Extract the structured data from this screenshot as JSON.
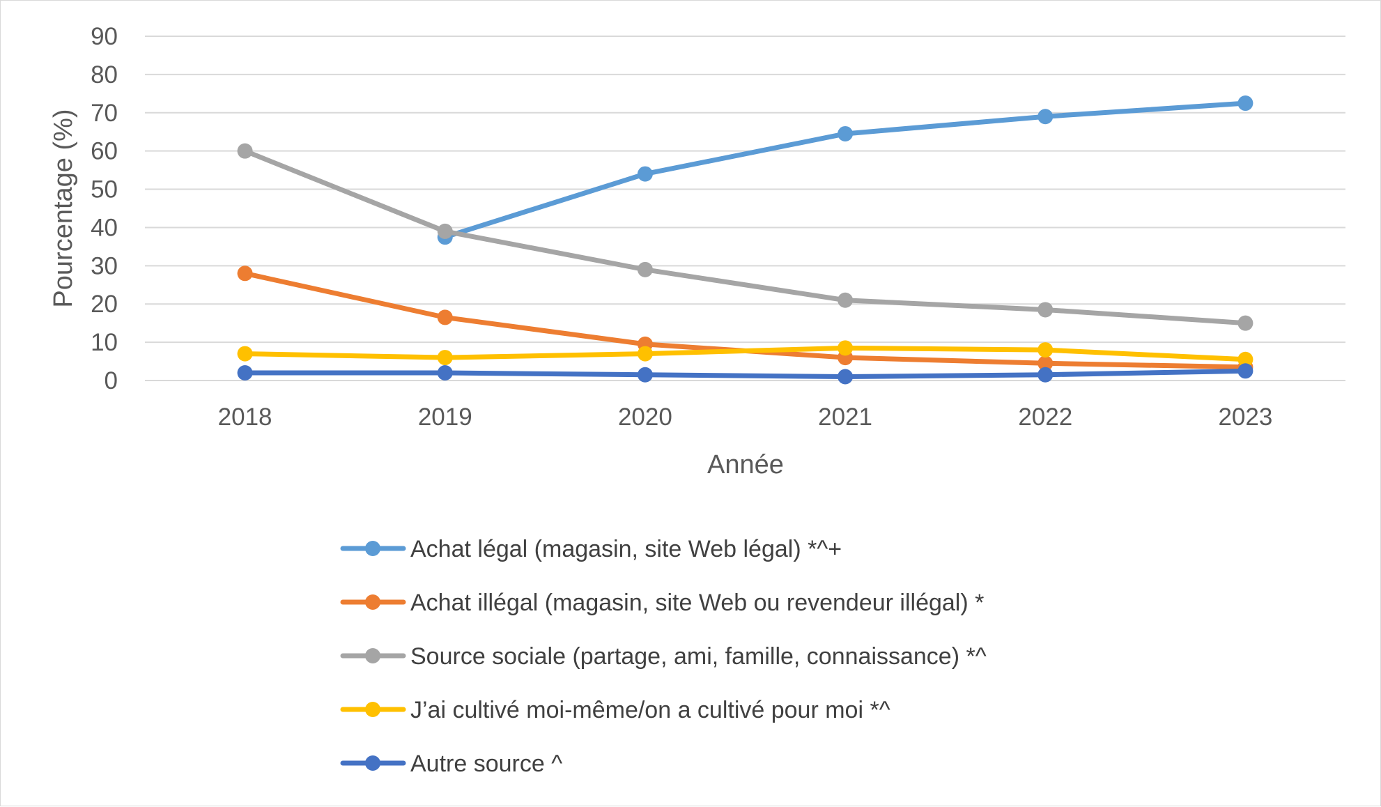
{
  "chart_data": {
    "type": "line",
    "title": "",
    "xlabel": "Année",
    "ylabel": "Pourcentage (%)",
    "ylim": [
      0,
      90
    ],
    "yticks": [
      0,
      10,
      20,
      30,
      40,
      50,
      60,
      70,
      80,
      90
    ],
    "categories": [
      "2018",
      "2019",
      "2020",
      "2021",
      "2022",
      "2023"
    ],
    "grid": true,
    "legend_position": "bottom",
    "series": [
      {
        "name": "Achat légal (magasin, site Web légal) *^+",
        "color": "#5b9bd5",
        "values": [
          null,
          37.5,
          54,
          64.5,
          69,
          72.5
        ]
      },
      {
        "name": "Achat illégal (magasin, site Web ou revendeur illégal) *",
        "color": "#ed7d31",
        "values": [
          28,
          16.5,
          9.5,
          6,
          4.5,
          3.5
        ]
      },
      {
        "name": "Source sociale (partage, ami, famille, connaissance) *^",
        "color": "#a5a5a5",
        "values": [
          60,
          39,
          29,
          21,
          18.5,
          15
        ]
      },
      {
        "name": "J’ai cultivé moi-même/on a cultivé pour moi *^",
        "color": "#ffc000",
        "values": [
          7,
          6,
          7,
          8.5,
          8,
          5.5
        ]
      },
      {
        "name": "Autre source ^",
        "color": "#4472c4",
        "values": [
          2,
          2,
          1.5,
          1,
          1.5,
          2.5
        ]
      }
    ]
  }
}
